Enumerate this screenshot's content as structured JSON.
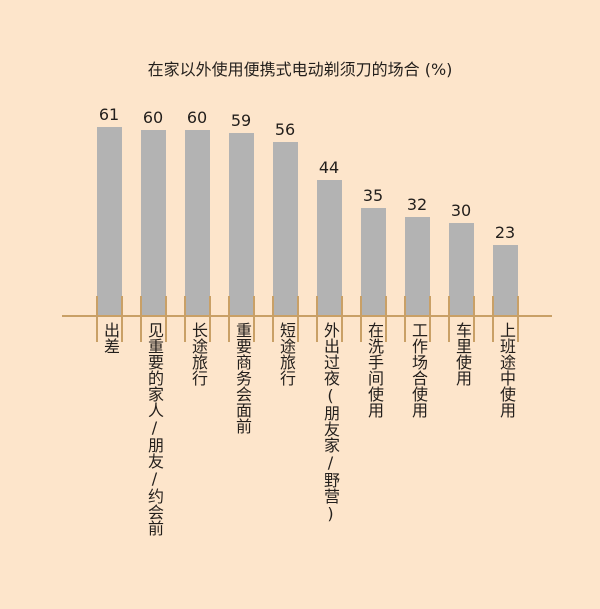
{
  "chart_data": {
    "type": "bar",
    "title": "在家以外使用便携式电动剃须刀的场合 (%)",
    "xlabel": "",
    "ylabel": "",
    "unit": "%",
    "grid": false,
    "legend": null,
    "categories": [
      "出差",
      "见重要的家人/朋友/约会前",
      "长途旅行",
      "重要商务会面前",
      "短途旅行",
      "外出过夜(朋友家/野营)",
      "在洗手间使用",
      "工作场合使用",
      "车里使用",
      "上班途中使用"
    ],
    "values": [
      61,
      60,
      60,
      59,
      56,
      44,
      35,
      32,
      30,
      23
    ],
    "colors": {
      "bar": "#b3b3b3",
      "axis": "#c9a066",
      "background": "#fde5cb"
    }
  }
}
